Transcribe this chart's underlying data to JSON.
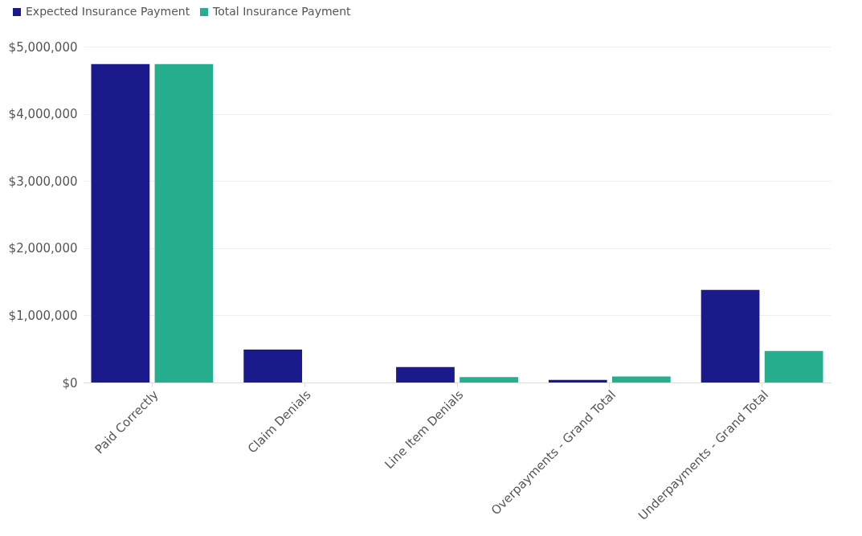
{
  "chart_data": {
    "type": "bar",
    "categories": [
      "Paid Correctly",
      "Claim Denials",
      "Line Item Denials",
      "Overpayments - Grand Total",
      "Underpayments - Grand Total"
    ],
    "series": [
      {
        "name": "Expected Insurance Payment",
        "color": "#1a1a8c",
        "values": [
          4740000,
          490000,
          230000,
          40000,
          1380000
        ]
      },
      {
        "name": "Total Insurance Payment",
        "color": "#27ae8f",
        "values": [
          4740000,
          0,
          80000,
          90000,
          470000
        ]
      }
    ],
    "ylim": [
      0,
      5000000
    ],
    "yticks": [
      {
        "value": 0,
        "label": "$0"
      },
      {
        "value": 1000000,
        "label": "$1,000,000"
      },
      {
        "value": 2000000,
        "label": "$2,000,000"
      },
      {
        "value": 3000000,
        "label": "$3,000,000"
      },
      {
        "value": 4000000,
        "label": "$4,000,000"
      },
      {
        "value": 5000000,
        "label": "$5,000,000"
      }
    ],
    "grid": "y",
    "legend": "top left"
  }
}
